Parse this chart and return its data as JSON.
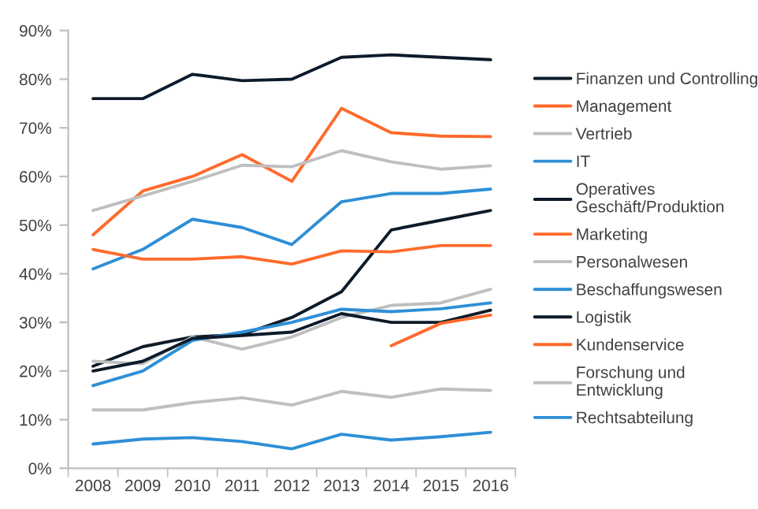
{
  "chart_data": {
    "type": "line",
    "categories": [
      "2008",
      "2009",
      "2010",
      "2011",
      "2012",
      "2013",
      "2014",
      "2015",
      "2016"
    ],
    "ylim": [
      0,
      90
    ],
    "yticks": [
      {
        "value": 0,
        "label": "0%"
      },
      {
        "value": 10,
        "label": "10%"
      },
      {
        "value": 20,
        "label": "20%"
      },
      {
        "value": 30,
        "label": "30%"
      },
      {
        "value": 40,
        "label": "40%"
      },
      {
        "value": 50,
        "label": "50%"
      },
      {
        "value": 60,
        "label": "60%"
      },
      {
        "value": 70,
        "label": "70%"
      },
      {
        "value": 80,
        "label": "80%"
      },
      {
        "value": 90,
        "label": "90%"
      }
    ],
    "grid": false,
    "legend": "right",
    "marker": "none",
    "line_style": "solid",
    "series": [
      {
        "name": "Finanzen und Controlling",
        "color": "#0d1b2a",
        "values": [
          76,
          76,
          81,
          79.7,
          80,
          84.5,
          85,
          84.5,
          84
        ]
      },
      {
        "name": "Management",
        "color": "#ff6a2b",
        "values": [
          48,
          57,
          60,
          64.5,
          59,
          74,
          69,
          68.3,
          68.2
        ]
      },
      {
        "name": "Vertrieb",
        "color": "#bfbfbf",
        "values": [
          53,
          56,
          59,
          62.3,
          62,
          65.3,
          63,
          61.5,
          62.2
        ]
      },
      {
        "name": "IT",
        "color": "#2e8fd6",
        "values": [
          41,
          45,
          51.2,
          49.5,
          46,
          54.8,
          56.5,
          56.5,
          57.4
        ]
      },
      {
        "name": "Operatives\nGeschäft/Produktion",
        "color": "#0d1b2a",
        "values": [
          21,
          25,
          27,
          27.5,
          31,
          36.3,
          49,
          51,
          53
        ]
      },
      {
        "name": "Marketing",
        "color": "#ff6a2b",
        "values": [
          45,
          43,
          43,
          43.5,
          42,
          44.7,
          44.5,
          45.8,
          45.8
        ]
      },
      {
        "name": "Personalwesen",
        "color": "#bfbfbf",
        "values": [
          22,
          21.5,
          27,
          24.5,
          27,
          31,
          33.5,
          34,
          36.8
        ]
      },
      {
        "name": "Beschaffungswesen",
        "color": "#2e8fd6",
        "values": [
          17,
          20,
          26.3,
          28,
          30,
          32.7,
          32.2,
          32.8,
          34
        ]
      },
      {
        "name": "Logistik",
        "color": "#0d1b2a",
        "values": [
          20,
          22,
          26.7,
          27.3,
          28,
          31.8,
          30,
          30,
          32.5
        ]
      },
      {
        "name": "Kundenservice",
        "color": "#ff6a2b",
        "values": [
          null,
          null,
          null,
          null,
          null,
          null,
          25.2,
          29.8,
          31.5
        ]
      },
      {
        "name": "Forschung und\nEntwicklung",
        "color": "#bfbfbf",
        "values": [
          12,
          12,
          13.5,
          14.5,
          13,
          15.8,
          14.6,
          16.3,
          16
        ]
      },
      {
        "name": "Rechtsabteilung",
        "color": "#2e8fd6",
        "values": [
          5,
          6,
          6.3,
          5.5,
          4,
          7,
          5.8,
          6.5,
          7.4
        ]
      }
    ]
  }
}
